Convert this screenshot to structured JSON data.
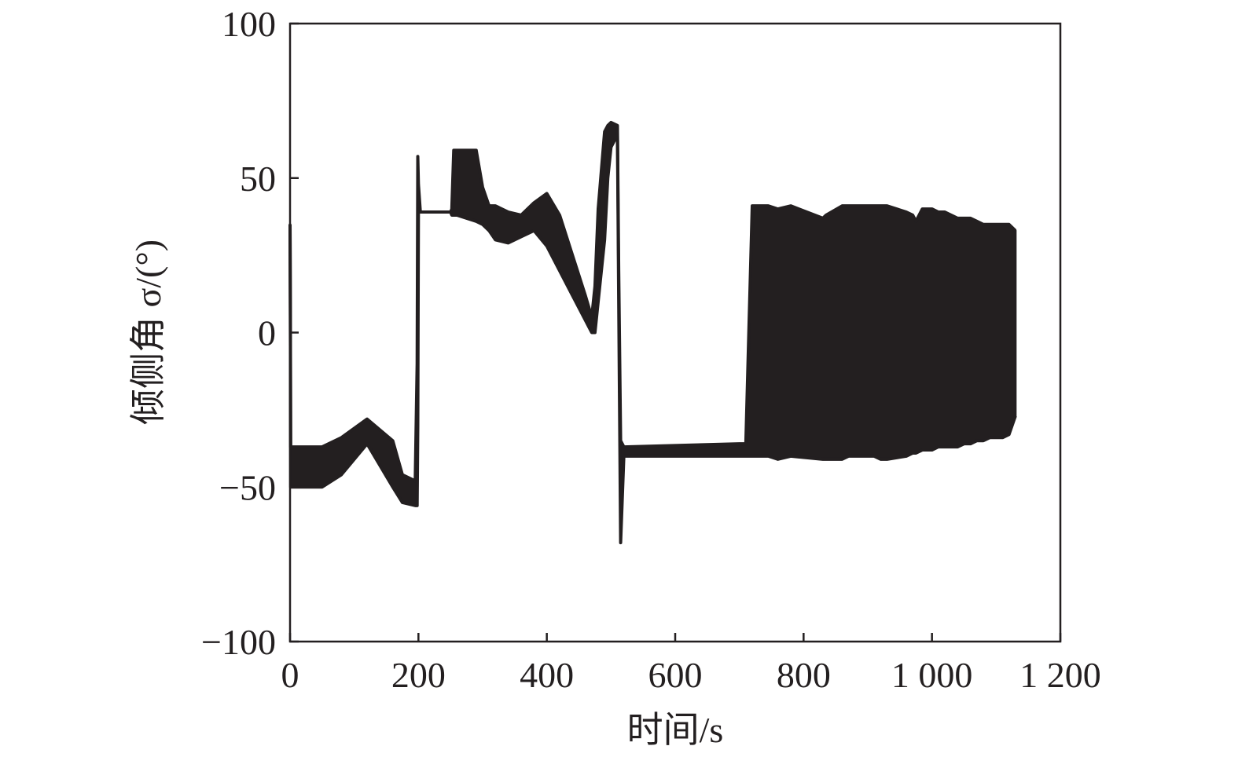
{
  "chart_data": {
    "type": "line",
    "title": "",
    "xlabel": "时间/s",
    "ylabel": "倾侧角 σ/(°)",
    "xlim": [
      0,
      1200
    ],
    "ylim": [
      -100,
      100
    ],
    "x_ticks": [
      0,
      200,
      400,
      600,
      800,
      1000,
      1200
    ],
    "x_tick_labels": [
      "0",
      "200",
      "400",
      "600",
      "800",
      "1 000",
      "1 200"
    ],
    "y_ticks": [
      -100,
      -50,
      0,
      50,
      100
    ],
    "y_tick_labels": [
      "−100",
      "−50",
      "0",
      "50",
      "100"
    ],
    "grid": false,
    "legend": "none",
    "series_color": "#231f20",
    "series": [
      {
        "upper": {
          "x": [
            0,
            0.5,
            1,
            20,
            50,
            80,
            120,
            160,
            175,
            195,
            198,
            199,
            200,
            203,
            205,
            250,
            252,
            255,
            260,
            290,
            300,
            310,
            320,
            340,
            360,
            380,
            400,
            420,
            440,
            460,
            470,
            475,
            480,
            490,
            495,
            500,
            510,
            512,
            515,
            520,
            700,
            710,
            720,
            735,
            745,
            760,
            780,
            830,
            835,
            860,
            870,
            880,
            910,
            920,
            930,
            960,
            970,
            975,
            985,
            1000,
            1010,
            1020,
            1040,
            1050,
            1060,
            1070,
            1080,
            1090,
            1100,
            1110,
            1120,
            1130
          ],
          "y": [
            35,
            5,
            -37,
            -37,
            -37,
            -34,
            -28,
            -35,
            -46,
            -48,
            -10,
            57,
            48,
            39,
            39,
            39,
            40,
            59,
            59,
            59,
            47,
            41,
            41,
            39,
            38,
            42,
            45,
            38,
            25,
            12,
            5,
            15,
            40,
            65,
            67,
            68,
            67,
            20,
            -35,
            -37,
            -36,
            -36,
            41,
            41,
            41,
            40,
            41,
            37,
            38,
            41,
            41,
            41,
            41,
            41,
            41,
            39,
            38,
            36,
            40,
            40,
            39,
            39,
            37,
            37,
            37,
            36,
            35,
            35,
            35,
            35,
            35,
            33
          ]
        },
        "lower": {
          "x": [
            0,
            0.5,
            1,
            20,
            50,
            80,
            120,
            160,
            175,
            195,
            198,
            199,
            200,
            203,
            205,
            250,
            252,
            255,
            260,
            290,
            300,
            310,
            320,
            340,
            360,
            380,
            400,
            420,
            440,
            460,
            470,
            475,
            480,
            490,
            495,
            500,
            510,
            512,
            515,
            520,
            700,
            710,
            720,
            735,
            745,
            760,
            780,
            830,
            835,
            860,
            870,
            880,
            910,
            920,
            930,
            960,
            970,
            975,
            985,
            1000,
            1010,
            1020,
            1040,
            1050,
            1060,
            1070,
            1080,
            1090,
            1100,
            1110,
            1120,
            1130
          ],
          "y": [
            35,
            5,
            -50,
            -50,
            -50,
            -46,
            -36,
            -50,
            -55,
            -56,
            -56,
            -30,
            40,
            39,
            39,
            39,
            38,
            38,
            38,
            36,
            35,
            33,
            30,
            29,
            31,
            33,
            28,
            20,
            12,
            4,
            0,
            0,
            10,
            30,
            50,
            60,
            64,
            10,
            -68,
            -40,
            -40,
            -40,
            -40,
            -40,
            -40,
            -41,
            -40,
            -41,
            -41,
            -41,
            -40,
            -40,
            -40,
            -41,
            -41,
            -40,
            -39,
            -39,
            -38,
            -38,
            -37,
            -37,
            -37,
            -36,
            -36,
            -35,
            -35,
            -34,
            -34,
            -34,
            -33,
            -27
          ]
        }
      }
    ]
  }
}
